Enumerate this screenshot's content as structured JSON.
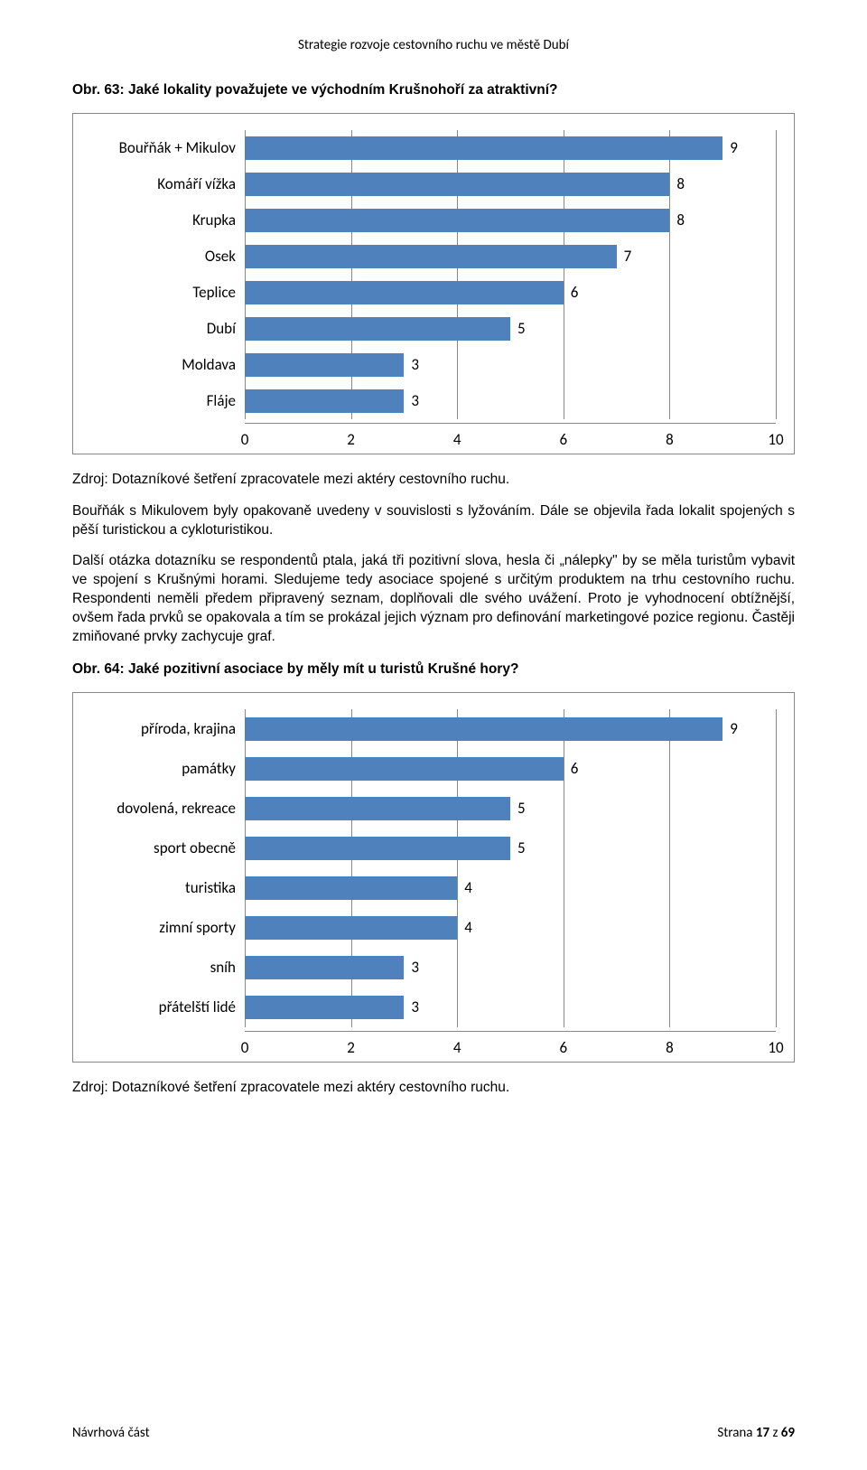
{
  "header": "Strategie rozvoje cestovního ruchu ve městě Dubí",
  "fig63_title": "Obr. 63: Jaké lokality považujete ve východním Krušnohoří za atraktivní?",
  "chart63": {
    "type": "bar-horizontal",
    "bar_color": "#4f81bd",
    "border_color": "#888888",
    "grid_color": "#888888",
    "label_fontsize": 17,
    "value_fontsize": 17,
    "xmin": 0,
    "xmax": 10,
    "xtick_step": 2,
    "xticks": [
      0,
      2,
      4,
      6,
      8,
      10
    ],
    "items": [
      {
        "label": "Bouřňák + Mikulov",
        "value": 9
      },
      {
        "label": "Komáří vížka",
        "value": 8
      },
      {
        "label": "Krupka",
        "value": 8
      },
      {
        "label": "Osek",
        "value": 7
      },
      {
        "label": "Teplice",
        "value": 6
      },
      {
        "label": "Dubí",
        "value": 5
      },
      {
        "label": "Moldava",
        "value": 3
      },
      {
        "label": "Fláje",
        "value": 3
      }
    ]
  },
  "source63": "Zdroj: Dotazníkové šetření zpracovatele mezi aktéry cestovního ruchu.",
  "para1": "Bouřňák s Mikulovem byly opakovaně uvedeny v souvislosti s lyžováním. Dále se objevila řada lokalit spojených s pěší turistickou a cykloturistikou.",
  "para2": "Další otázka dotazníku se respondentů ptala, jaká tři pozitivní slova, hesla či „nálepky\" by se měla turistům vybavit ve spojení s Krušnými horami. Sledujeme tedy asociace spojené s určitým produktem na trhu cestovního ruchu. Respondenti neměli předem připravený seznam, doplňovali dle svého uvážení. Proto je vyhodnocení obtížnější, ovšem řada prvků se opakovala a tím se prokázal jejich význam pro definování marketingové pozice regionu. Častěji zmiňované prvky zachycuje graf.",
  "fig64_title": "Obr. 64: Jaké pozitivní asociace by měly mít u turistů Krušné hory?",
  "chart64": {
    "type": "bar-horizontal",
    "bar_color": "#4f81bd",
    "border_color": "#888888",
    "grid_color": "#888888",
    "label_fontsize": 17,
    "value_fontsize": 17,
    "xmin": 0,
    "xmax": 10,
    "xtick_step": 2,
    "xticks": [
      0,
      2,
      4,
      6,
      8,
      10
    ],
    "items": [
      {
        "label": "příroda, krajina",
        "value": 9
      },
      {
        "label": "památky",
        "value": 6
      },
      {
        "label": "dovolená, rekreace",
        "value": 5
      },
      {
        "label": "sport obecně",
        "value": 5
      },
      {
        "label": "turistika",
        "value": 4
      },
      {
        "label": "zimní sporty",
        "value": 4
      },
      {
        "label": "sníh",
        "value": 3
      },
      {
        "label": "přátelští lidé",
        "value": 3
      }
    ]
  },
  "source64": "Zdroj: Dotazníkové šetření zpracovatele mezi aktéry cestovního ruchu.",
  "footer": {
    "left": "Návrhová část",
    "right_prefix": "Strana ",
    "page_current": "17",
    "right_mid": " z ",
    "page_total": "69"
  }
}
